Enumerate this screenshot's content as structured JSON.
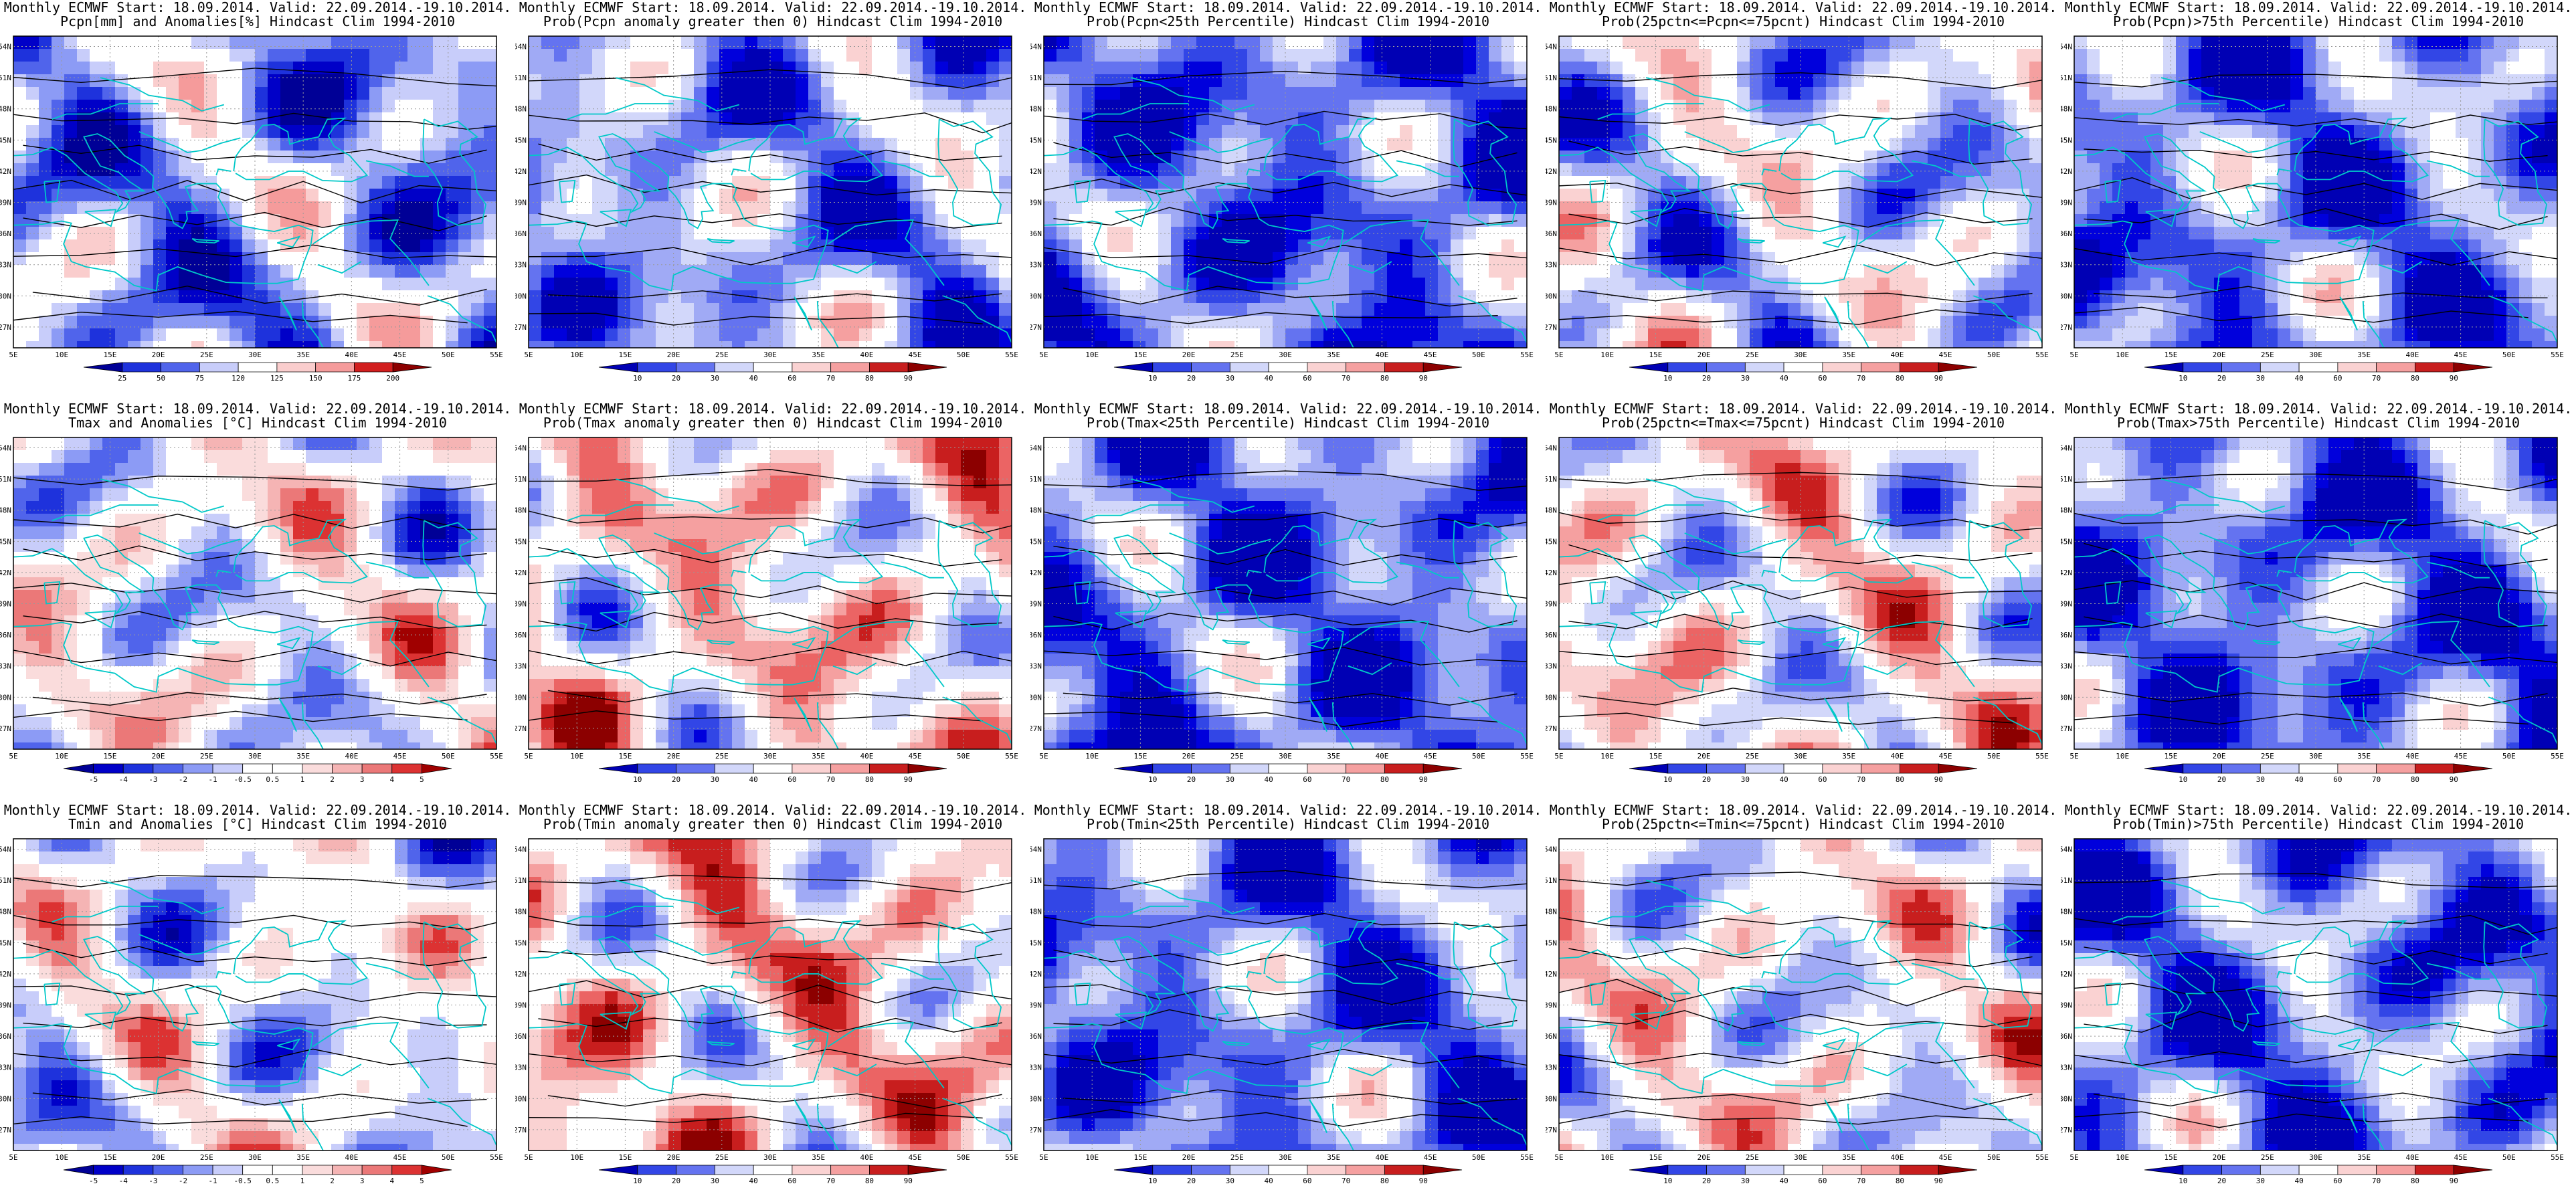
{
  "colors": {
    "strong_blue": "#0000c8",
    "mid_blue": "#3c50e6",
    "light_blue": "#a0aaf5",
    "pale_blue": "#dce1fa",
    "pale_red": "#fadcdc",
    "light_red": "#f5a0a0",
    "mid_red": "#e63c3c",
    "dark_red": "#a00000",
    "coast": "#00c8c8",
    "contour": "#000000"
  },
  "axes": {
    "lon_ticks": [
      "5E",
      "10E",
      "15E",
      "20E",
      "25E",
      "30E",
      "35E",
      "40E",
      "45E",
      "50E",
      "55E"
    ],
    "lat_ticks": [
      "54N",
      "51N",
      "48N",
      "45N",
      "42N",
      "39N",
      "36N",
      "33N",
      "30N",
      "27N"
    ]
  },
  "panels": [
    {
      "title1": "Monthly ECMWF Start: 18.09.2014. Valid: 22.09.2014.-19.10.2014.",
      "title2": "Pcpn[mm] and Anomalies[%] Hindcast Clim 1994-2010",
      "scale": "anom_pcpn",
      "bias": -0.3,
      "colorbar": [
        "25",
        "50",
        "75",
        "120",
        "125",
        "150",
        "175",
        "200"
      ],
      "fill_shown": false
    },
    {
      "title1": "Monthly ECMWF Start: 18.09.2014. Valid: 22.09.2014.-19.10.2014.",
      "title2": "Prob(Pcpn anomaly greater then 0) Hindcast Clim 1994-2010",
      "scale": "prob",
      "bias": -0.35,
      "colorbar": [
        "10",
        "20",
        "30",
        "40",
        "60",
        "70",
        "80",
        "90"
      ],
      "fill_shown": false
    },
    {
      "title1": "Monthly ECMWF Start: 18.09.2014. Valid: 22.09.2014.-19.10.2014.",
      "title2": "Prob(Pcpn<25th Percentile) Hindcast Clim 1994-2010",
      "scale": "prob",
      "bias": -0.55,
      "colorbar": [
        "10",
        "20",
        "30",
        "40",
        "60",
        "70",
        "80",
        "90"
      ],
      "fill_shown": false
    },
    {
      "title1": "Monthly ECMWF Start: 18.09.2014. Valid: 22.09.2014.-19.10.2014.",
      "title2": "Prob(25pctn<=Pcpn<=75pcnt) Hindcast Clim 1994-2010",
      "scale": "prob",
      "bias": -0.15,
      "colorbar": [
        "10",
        "20",
        "30",
        "40",
        "60",
        "70",
        "80",
        "90"
      ],
      "fill_shown": false
    },
    {
      "title1": "Monthly ECMWF Start: 18.09.2014. Valid: 22.09.2014.-19.10.2014.",
      "title2": "Prob(Pcpn)>75th Percentile) Hindcast Clim 1994-2010",
      "scale": "prob",
      "bias": -0.5,
      "colorbar": [
        "10",
        "20",
        "30",
        "40",
        "60",
        "70",
        "80",
        "90"
      ],
      "fill_shown": false
    },
    {
      "title1": "Monthly ECMWF Start: 18.09.2014. Valid: 22.09.2014.-19.10.2014.",
      "title2": "Tmax and Anomalies [°C] Hindcast Clim 1994-2010",
      "scale": "anom_temp",
      "bias": 0.05,
      "colorbar": [
        "-5",
        "-4",
        "-3",
        "-2",
        "-1",
        "-0.5",
        "0.5",
        "1",
        "2",
        "3",
        "4",
        "5"
      ],
      "fill_shown": false
    },
    {
      "title1": "Monthly ECMWF Start: 18.09.2014. Valid: 22.09.2014.-19.10.2014.",
      "title2": "Prob(Tmax anomaly greater then 0) Hindcast Clim 1994-2010",
      "scale": "prob",
      "bias": 0.2,
      "colorbar": [
        "10",
        "20",
        "30",
        "40",
        "60",
        "70",
        "80",
        "90"
      ],
      "fill_shown": true
    },
    {
      "title1": "Monthly ECMWF Start: 18.09.2014. Valid: 22.09.2014.-19.10.2014.",
      "title2": "Prob(Tmax<25th Percentile) Hindcast Clim 1994-2010",
      "scale": "prob",
      "bias": -0.55,
      "colorbar": [
        "10",
        "20",
        "30",
        "40",
        "60",
        "70",
        "80",
        "90"
      ],
      "fill_shown": true
    },
    {
      "title1": "Monthly ECMWF Start: 18.09.2014. Valid: 22.09.2014.-19.10.2014.",
      "title2": "Prob(25pctn<=Tmax<=75pcnt) Hindcast Clim 1994-2010",
      "scale": "prob",
      "bias": 0.1,
      "colorbar": [
        "10",
        "20",
        "30",
        "40",
        "60",
        "70",
        "80",
        "90"
      ],
      "fill_shown": true
    },
    {
      "title1": "Monthly ECMWF Start: 18.09.2014. Valid: 22.09.2014.-19.10.2014.",
      "title2": "Prob(Tmax>75th Percentile) Hindcast Clim 1994-2010",
      "scale": "prob",
      "bias": -0.55,
      "colorbar": [
        "10",
        "20",
        "30",
        "40",
        "60",
        "70",
        "80",
        "90"
      ],
      "fill_shown": true
    },
    {
      "title1": "Monthly ECMWF Start: 18.09.2014. Valid: 22.09.2014.-19.10.2014.",
      "title2": "Tmin and Anomalies [°C] Hindcast Clim 1994-2010",
      "scale": "anom_temp",
      "bias": 0.0,
      "colorbar": [
        "-5",
        "-4",
        "-3",
        "-2",
        "-1",
        "-0.5",
        "0.5",
        "1",
        "2",
        "3",
        "4",
        "5"
      ],
      "fill_shown": false
    },
    {
      "title1": "Monthly ECMWF Start: 18.09.2014. Valid: 22.09.2014.-19.10.2014.",
      "title2": "Prob(Tmin anomaly greater then 0) Hindcast Clim 1994-2010",
      "scale": "prob",
      "bias": 0.25,
      "colorbar": [
        "10",
        "20",
        "30",
        "40",
        "60",
        "70",
        "80",
        "90"
      ],
      "fill_shown": true
    },
    {
      "title1": "Monthly ECMWF Start: 18.09.2014. Valid: 22.09.2014.-19.10.2014.",
      "title2": "Prob(Tmin<25th Percentile) Hindcast Clim 1994-2010",
      "scale": "prob",
      "bias": -0.5,
      "colorbar": [
        "10",
        "20",
        "30",
        "40",
        "60",
        "70",
        "80",
        "90"
      ],
      "fill_shown": true
    },
    {
      "title1": "Monthly ECMWF Start: 18.09.2014. Valid: 22.09.2014.-19.10.2014.",
      "title2": "Prob(25pctn<=Tmin<=75pcnt) Hindcast Clim 1994-2010",
      "scale": "prob",
      "bias": 0.05,
      "colorbar": [
        "10",
        "20",
        "30",
        "40",
        "60",
        "70",
        "80",
        "90"
      ],
      "fill_shown": true
    },
    {
      "title1": "Monthly ECMWF Start: 18.09.2014. Valid: 22.09.2014.-19.10.2014.",
      "title2": "Prob(Tmin)>75th Percentile) Hindcast Clim 1994-2010",
      "scale": "prob",
      "bias": -0.5,
      "colorbar": [
        "10",
        "20",
        "30",
        "40",
        "60",
        "70",
        "80",
        "90"
      ],
      "fill_shown": true
    }
  ]
}
